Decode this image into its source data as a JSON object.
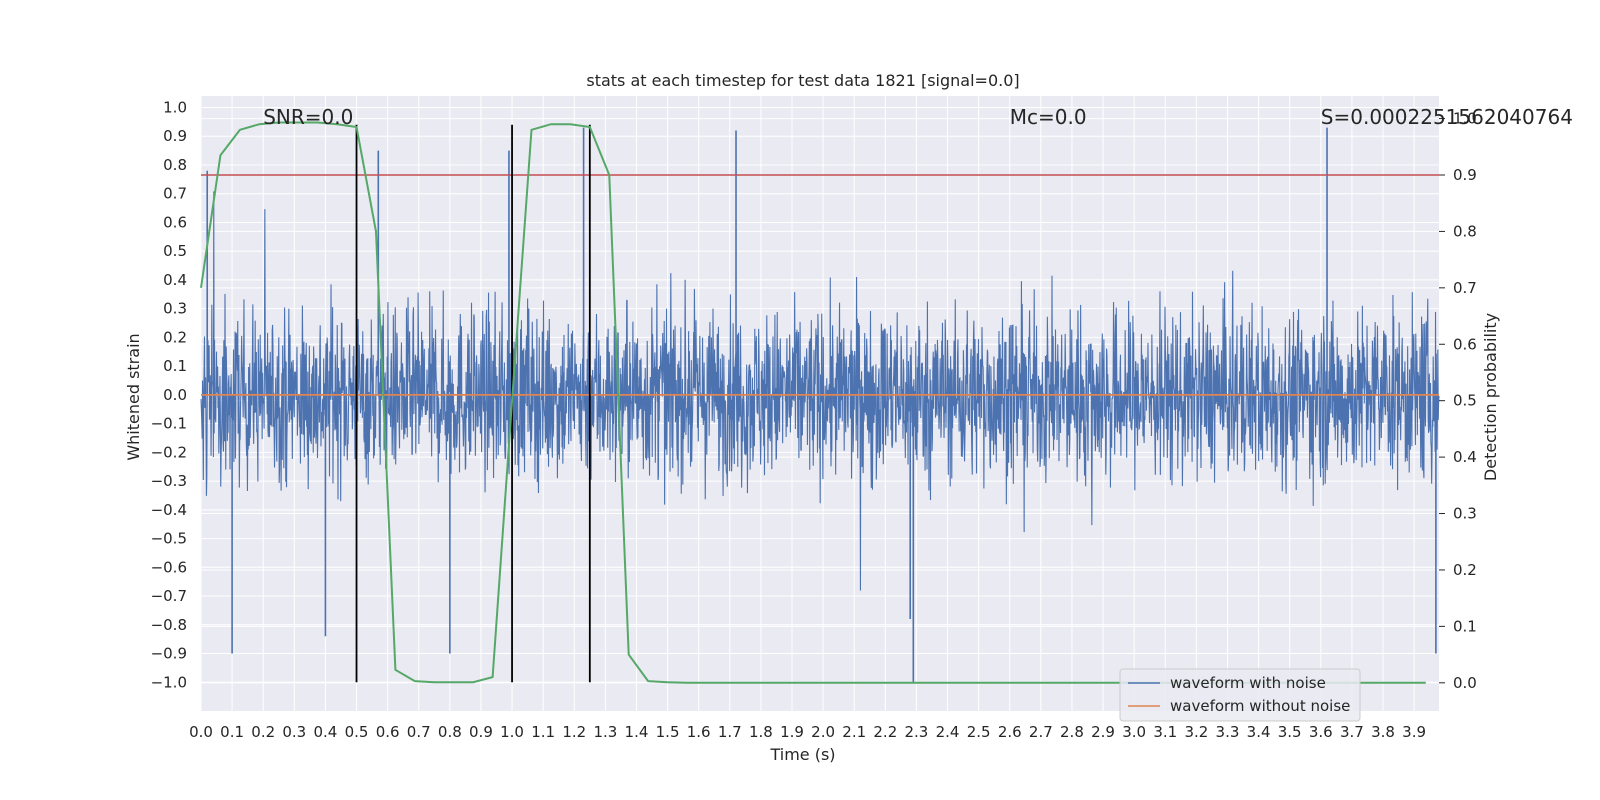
{
  "chart_data": {
    "type": "line",
    "title": "stats at each timestep for test data 1821 [signal=0.0]",
    "xlabel": "Time (s)",
    "ylabel": "Whitened strain",
    "y2label": "Detection probability",
    "xlim": [
      0.0,
      3.98
    ],
    "ylim": [
      -1.1,
      1.04
    ],
    "y2lim": [
      -0.05,
      1.04
    ],
    "x_ticks": [
      0.0,
      0.1,
      0.2,
      0.3,
      0.4,
      0.5,
      0.6,
      0.7,
      0.8,
      0.9,
      1.0,
      1.1,
      1.2,
      1.3,
      1.4,
      1.5,
      1.6,
      1.7,
      1.8,
      1.9,
      2.0,
      2.1,
      2.2,
      2.3,
      2.4,
      2.5,
      2.6,
      2.7,
      2.8,
      2.9,
      3.0,
      3.1,
      3.2,
      3.3,
      3.4,
      3.5,
      3.6,
      3.7,
      3.8,
      3.9
    ],
    "x_tick_labels": [
      "0.0",
      "0.1",
      "0.2",
      "0.3",
      "0.4",
      "0.5",
      "0.6",
      "0.7",
      "0.8",
      "0.9",
      "1.0",
      "1.1",
      "1.2",
      "1.3",
      "1.4",
      "1.5",
      "1.6",
      "1.7",
      "1.8",
      "1.9",
      "2.0",
      "2.1",
      "2.2",
      "2.3",
      "2.4",
      "2.5",
      "2.6",
      "2.7",
      "2.8",
      "2.9",
      "3.0",
      "3.1",
      "3.2",
      "3.3",
      "3.4",
      "3.5",
      "3.6",
      "3.7",
      "3.8",
      "3.9"
    ],
    "y_ticks": [
      1.0,
      0.9,
      0.8,
      0.7,
      0.6,
      0.5,
      0.4,
      0.3,
      0.2,
      0.1,
      0.0,
      -0.1,
      -0.2,
      -0.3,
      -0.4,
      -0.5,
      -0.6,
      -0.7,
      -0.8,
      -0.9,
      -1.0
    ],
    "y_tick_labels": [
      "1.0",
      "0.9",
      "0.8",
      "0.7",
      "0.6",
      "0.5",
      "0.4",
      "0.3",
      "0.2",
      "0.1",
      "0.0",
      "−0.1",
      "−0.2",
      "−0.3",
      "−0.4",
      "−0.5",
      "−0.6",
      "−0.7",
      "−0.8",
      "−0.9",
      "−1.0"
    ],
    "y2_ticks": [
      1.0,
      0.9,
      0.8,
      0.7,
      0.6,
      0.5,
      0.4,
      0.3,
      0.2,
      0.1,
      0.0
    ],
    "y2_tick_labels": [
      "1.0",
      "0.9",
      "0.8",
      "0.7",
      "0.6",
      "0.5",
      "0.4",
      "0.3",
      "0.2",
      "0.1",
      "0.0"
    ],
    "annotations": [
      {
        "text": "SNR=0.0",
        "x": 0.2
      },
      {
        "text": "Mc=0.0",
        "x": 2.6
      },
      {
        "text": "S=0.0002251562040764",
        "x": 3.6
      }
    ],
    "threshold": {
      "value": 0.9,
      "axis": "y2",
      "color": "#c44e52"
    },
    "vlines": [
      {
        "x": 0.5,
        "ymin": -1.0,
        "ymax": 0.94
      },
      {
        "x": 1.0,
        "ymin": -1.0,
        "ymax": 0.94
      },
      {
        "x": 1.25,
        "ymin": -1.0,
        "ymax": 0.94
      }
    ],
    "series": [
      {
        "name": "waveform with noise",
        "color": "#4c72b0",
        "description": "dense whitened strain noise, roughly within -0.6 to 0.7 with spikes to ±0.93",
        "spikes": [
          {
            "x": 0.02,
            "y": 0.78
          },
          {
            "x": 0.1,
            "y": -0.9
          },
          {
            "x": 0.4,
            "y": -0.84
          },
          {
            "x": 0.57,
            "y": 0.85
          },
          {
            "x": 0.8,
            "y": -0.9
          },
          {
            "x": 0.99,
            "y": 0.85
          },
          {
            "x": 1.23,
            "y": 0.93
          },
          {
            "x": 1.72,
            "y": 0.92
          },
          {
            "x": 2.29,
            "y": -1.0
          },
          {
            "x": 2.28,
            "y": -0.78
          },
          {
            "x": 3.62,
            "y": 0.93
          },
          {
            "x": 3.97,
            "y": -0.9
          }
        ]
      },
      {
        "name": "waveform without noise",
        "color": "#dd8452",
        "x": [
          0.0,
          3.98
        ],
        "values": [
          0.0,
          0.0
        ]
      },
      {
        "name": "detection probability",
        "axis": "y2",
        "color": "#55a868",
        "x": [
          0.0,
          0.0625,
          0.125,
          0.1875,
          0.25,
          0.3125,
          0.375,
          0.4375,
          0.5,
          0.5625,
          0.625,
          0.6875,
          0.75,
          0.8125,
          0.875,
          0.9375,
          1.0,
          1.0625,
          1.125,
          1.1875,
          1.25,
          1.3125,
          1.375,
          1.4375,
          1.5,
          1.5625,
          1.625,
          1.6875,
          1.75,
          1.8125,
          1.875,
          1.9375,
          2.0,
          2.0625,
          2.125,
          2.1875,
          2.25,
          2.3125,
          2.375,
          2.4375,
          2.5,
          2.5625,
          2.625,
          2.6875,
          2.75,
          2.8125,
          2.875,
          2.9375,
          3.0,
          3.0625,
          3.125,
          3.1875,
          3.25,
          3.3125,
          3.375,
          3.4375,
          3.5,
          3.5625,
          3.625,
          3.6875,
          3.75,
          3.8125,
          3.875,
          3.9375
        ],
        "values": [
          0.7,
          0.935,
          0.98,
          0.99,
          0.993,
          0.993,
          0.993,
          0.99,
          0.985,
          0.8,
          0.023,
          0.003,
          0.001,
          0.001,
          0.001,
          0.01,
          0.5,
          0.98,
          0.99,
          0.99,
          0.985,
          0.9,
          0.05,
          0.003,
          0.001,
          0.0,
          0.0,
          0.0,
          0.0,
          0.0,
          0.0,
          0.0,
          0.0,
          0.0,
          0.0,
          0.0,
          0.0,
          0.0,
          0.0,
          0.0,
          0.0,
          0.0,
          0.0,
          0.0,
          0.0,
          0.0,
          0.0,
          0.0,
          0.0,
          0.0,
          0.0,
          0.0,
          0.0,
          0.0,
          0.0,
          0.0,
          0.0,
          0.0,
          0.0,
          0.0,
          0.0,
          0.0,
          0.0,
          0.0
        ]
      }
    ],
    "legend": {
      "position": "lower-right",
      "entries": [
        "waveform with noise",
        "waveform without noise"
      ]
    },
    "grid": true
  }
}
